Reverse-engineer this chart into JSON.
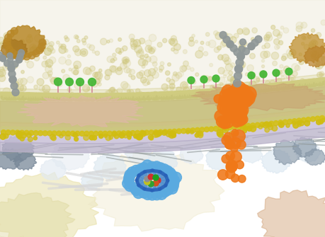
{
  "bg_color": "#ffffff",
  "membrane_outer_leaflet": "#d8d8a0",
  "membrane_core": "#c8c888",
  "membrane_inner_leaflet": "#c8b878",
  "membrane_lavender": "#c0b8d0",
  "membrane_lavender2": "#b0a8c8",
  "cytoskeleton_color": "#989898",
  "protein_orange": "#f07818",
  "green_ball": "#48b838",
  "gray_ball": "#909090",
  "yellow_lipid": "#d8c820",
  "blue_barrel": "#4090d8",
  "blue_barrel_ring": "#5aaae0",
  "extracell_fill": "#e8e4c8",
  "extracell_fill2": "#ddd8b8",
  "pink_microdomain": "#e0b8a8",
  "salmon_inner": "#c8a890",
  "brown_cluster": "#b88830",
  "light_gray_blob": "#d0d8e0",
  "dark_gray_protein": "#788898",
  "pale_yellow_organelle": "#e8e0a8",
  "salmon_organelle": "#d4a880",
  "white_bg": "#ffffff"
}
